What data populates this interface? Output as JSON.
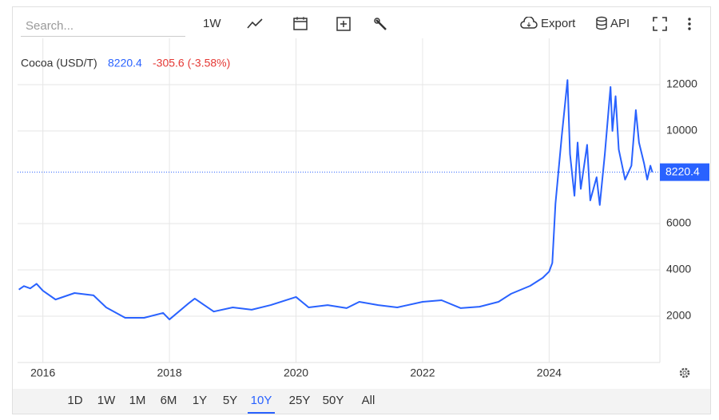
{
  "toolbar": {
    "search_placeholder": "Search...",
    "interval": "1W",
    "export": "Export",
    "api": "API"
  },
  "legend": {
    "price": 8220.4,
    "change": "-305.6 (-3.58%)"
  },
  "chart_data": {
    "type": "line",
    "x": [
      2015.62,
      2015.7,
      2015.8,
      2015.9,
      2016.0,
      2016.2,
      2016.5,
      2016.8,
      2017.0,
      2017.3,
      2017.6,
      2017.9,
      2018.0,
      2018.3,
      2018.4,
      2018.7,
      2019.0,
      2019.3,
      2019.6,
      2020.0,
      2020.2,
      2020.5,
      2020.8,
      2021.0,
      2021.3,
      2021.6,
      2022.0,
      2022.3,
      2022.6,
      2022.9,
      2023.2,
      2023.4,
      2023.7,
      2023.9,
      2024.0,
      2024.05,
      2024.1,
      2024.2,
      2024.29,
      2024.33,
      2024.4,
      2024.45,
      2024.5,
      2024.6,
      2024.65,
      2024.75,
      2024.8,
      2024.88,
      2024.97,
      2025.0,
      2025.05,
      2025.1,
      2025.2,
      2025.3,
      2025.37,
      2025.42,
      2025.5,
      2025.55,
      2025.6,
      2025.63
    ],
    "series": [
      {
        "name": "Cocoa (USD/T)",
        "color": "#2962ff",
        "values": [
          3150,
          3300,
          3200,
          3400,
          3100,
          2720,
          3000,
          2900,
          2380,
          1930,
          1930,
          2140,
          1860,
          2550,
          2760,
          2200,
          2380,
          2280,
          2480,
          2830,
          2380,
          2480,
          2350,
          2620,
          2480,
          2380,
          2620,
          2690,
          2350,
          2410,
          2620,
          2970,
          3310,
          3660,
          3930,
          4300,
          6860,
          9800,
          12200,
          9000,
          7200,
          9500,
          7500,
          9400,
          7000,
          8000,
          6800,
          9000,
          11900,
          10000,
          11500,
          9200,
          7900,
          8500,
          10900,
          9500,
          8600,
          7900,
          8500,
          8220.4
        ]
      }
    ],
    "xlim": [
      2015.6,
      2025.75
    ],
    "xticks": [
      2016,
      2018,
      2020,
      2022,
      2024
    ],
    "ylim": [
      0,
      14000
    ],
    "yticks": [
      2000,
      4000,
      6000,
      10000,
      12000
    ],
    "grid": true
  },
  "ranges": [
    "1D",
    "1W",
    "1M",
    "6M",
    "1Y",
    "5Y",
    "10Y",
    "25Y",
    "50Y",
    "All"
  ],
  "selected_range_index": 6
}
